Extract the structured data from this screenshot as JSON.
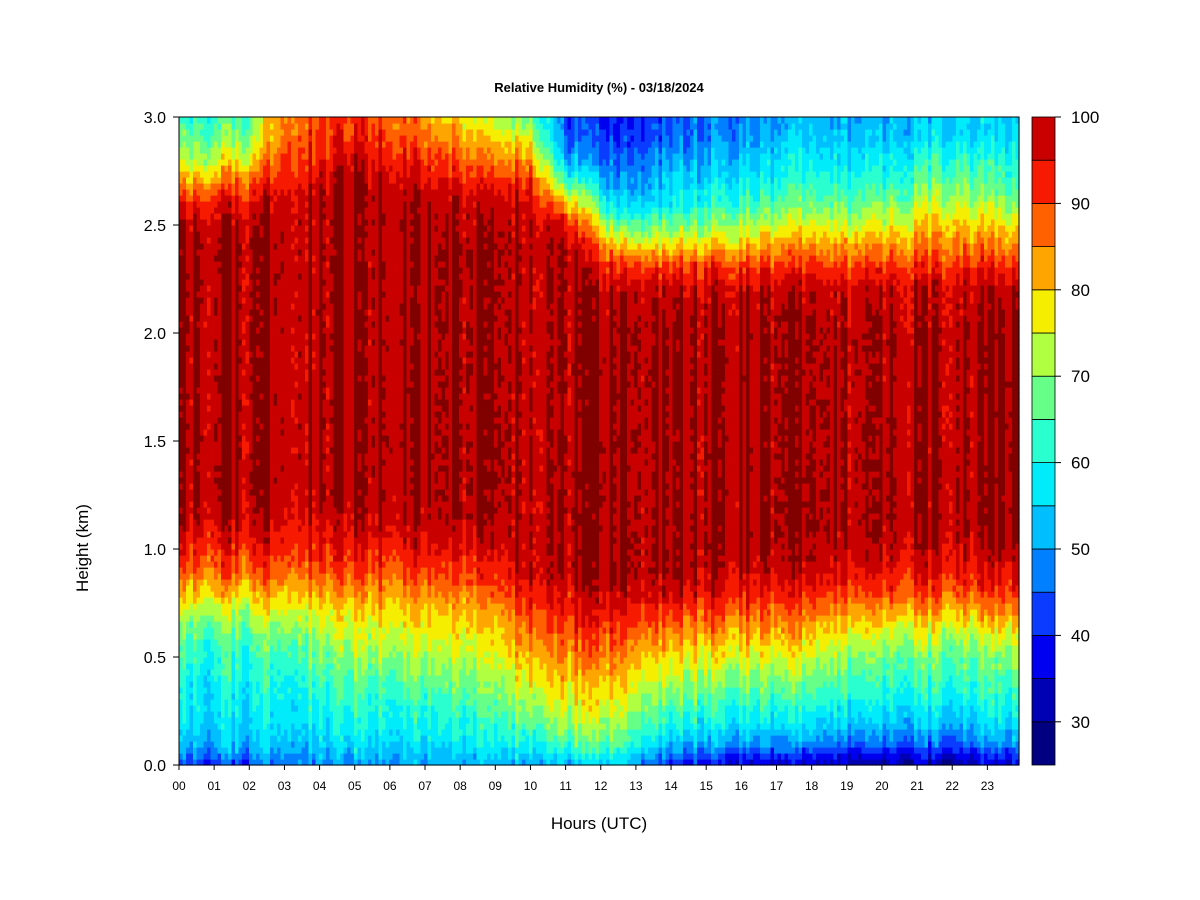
{
  "chart_data": {
    "type": "heatmap",
    "title": "Relative Humidity (%) - 03/18/2024",
    "xlabel": "Hours (UTC)",
    "ylabel": "Height (km)",
    "x_ticks": [
      "00",
      "01",
      "02",
      "03",
      "04",
      "05",
      "06",
      "07",
      "08",
      "09",
      "10",
      "11",
      "12",
      "13",
      "14",
      "15",
      "16",
      "17",
      "18",
      "19",
      "20",
      "21",
      "22",
      "23"
    ],
    "xlim": [
      0,
      23.9
    ],
    "ylim": [
      0,
      3.0
    ],
    "y_ticks": [
      "0.0",
      "0.5",
      "1.0",
      "1.5",
      "2.0",
      "2.5",
      "3.0"
    ],
    "y_tick_values": [
      0,
      0.5,
      1.0,
      1.5,
      2.0,
      2.5,
      3.0
    ],
    "colorbar": {
      "levels": [
        25,
        30,
        35,
        40,
        45,
        50,
        55,
        60,
        65,
        70,
        75,
        80,
        85,
        90,
        95,
        100
      ],
      "labels": [
        "30",
        "40",
        "50",
        "60",
        "70",
        "80",
        "90",
        "100"
      ],
      "label_values": [
        30,
        40,
        50,
        60,
        70,
        80,
        90,
        100
      ],
      "colors": [
        "#000080",
        "#0000b4",
        "#0000f0",
        "#0a3cff",
        "#0080ff",
        "#00bfff",
        "#00ecfa",
        "#2affd0",
        "#66ff88",
        "#b0ff40",
        "#f5ee00",
        "#ffa500",
        "#ff6000",
        "#f51a00",
        "#c80000",
        "#800000"
      ]
    },
    "profile_heights_km": [
      0.0,
      0.05,
      0.1,
      0.2,
      0.3,
      0.4,
      0.5,
      0.6,
      0.7,
      0.8,
      0.9,
      1.0,
      1.1,
      1.2,
      1.3,
      1.5,
      2.0,
      2.2,
      2.3,
      2.4,
      2.5,
      2.6,
      2.7,
      2.8,
      2.9,
      3.0
    ],
    "profiles": [
      {
        "hour": 0,
        "rh": [
          42,
          47,
          52,
          56,
          58,
          60,
          62,
          66,
          72,
          80,
          88,
          93,
          97,
          99,
          100,
          100,
          100,
          100,
          100,
          100,
          99,
          93,
          82,
          72,
          66,
          62
        ]
      },
      {
        "hour": 2,
        "rh": [
          42,
          48,
          53,
          56,
          58,
          60,
          62,
          66,
          72,
          80,
          88,
          93,
          97,
          99,
          100,
          100,
          100,
          100,
          100,
          100,
          99,
          95,
          88,
          78,
          70,
          66
        ]
      },
      {
        "hour": 3,
        "rh": [
          48,
          52,
          55,
          58,
          60,
          63,
          66,
          70,
          76,
          83,
          90,
          94,
          97,
          99,
          100,
          100,
          100,
          100,
          100,
          100,
          100,
          100,
          96,
          92,
          90,
          88
        ]
      },
      {
        "hour": 5,
        "rh": [
          50,
          53,
          56,
          60,
          63,
          66,
          70,
          74,
          78,
          84,
          90,
          94,
          97,
          99,
          100,
          100,
          100,
          100,
          100,
          100,
          100,
          100,
          100,
          97,
          94,
          92
        ]
      },
      {
        "hour": 7,
        "rh": [
          50,
          53,
          56,
          60,
          63,
          68,
          72,
          76,
          80,
          85,
          90,
          95,
          98,
          99,
          100,
          100,
          100,
          100,
          100,
          100,
          100,
          99,
          96,
          92,
          88,
          84
        ]
      },
      {
        "hour": 9,
        "rh": [
          52,
          55,
          58,
          62,
          66,
          70,
          74,
          78,
          82,
          87,
          92,
          96,
          98,
          100,
          100,
          100,
          100,
          100,
          100,
          100,
          99,
          97,
          92,
          85,
          78,
          72
        ]
      },
      {
        "hour": 10,
        "rh": [
          54,
          57,
          62,
          68,
          74,
          80,
          84,
          88,
          92,
          96,
          100,
          100,
          100,
          100,
          100,
          100,
          100,
          100,
          100,
          100,
          100,
          98,
          94,
          86,
          78,
          70
        ]
      },
      {
        "hour": 11,
        "rh": [
          54,
          58,
          64,
          72,
          76,
          80,
          84,
          88,
          92,
          96,
          100,
          100,
          100,
          100,
          100,
          100,
          100,
          100,
          100,
          100,
          96,
          82,
          66,
          52,
          46,
          44
        ]
      },
      {
        "hour": 12.5,
        "rh": [
          54,
          60,
          66,
          72,
          76,
          80,
          85,
          90,
          95,
          98,
          100,
          100,
          100,
          100,
          100,
          100,
          100,
          98,
          92,
          80,
          66,
          54,
          48,
          44,
          40,
          38
        ]
      },
      {
        "hour": 14,
        "rh": [
          40,
          46,
          52,
          60,
          66,
          72,
          78,
          84,
          90,
          96,
          100,
          100,
          100,
          100,
          100,
          100,
          100,
          98,
          92,
          80,
          68,
          58,
          54,
          50,
          46,
          44
        ]
      },
      {
        "hour": 16,
        "rh": [
          36,
          42,
          50,
          58,
          64,
          70,
          76,
          82,
          88,
          94,
          98,
          100,
          100,
          100,
          100,
          100,
          100,
          98,
          92,
          82,
          72,
          64,
          58,
          54,
          50,
          48
        ]
      },
      {
        "hour": 18,
        "rh": [
          34,
          40,
          48,
          56,
          62,
          68,
          74,
          80,
          86,
          92,
          97,
          99,
          100,
          100,
          100,
          100,
          100,
          98,
          92,
          84,
          76,
          68,
          62,
          58,
          54,
          52
        ]
      },
      {
        "hour": 20,
        "rh": [
          32,
          38,
          46,
          54,
          60,
          64,
          68,
          74,
          82,
          90,
          95,
          98,
          100,
          100,
          100,
          100,
          100,
          98,
          92,
          84,
          76,
          68,
          62,
          58,
          54,
          52
        ]
      },
      {
        "hour": 22,
        "rh": [
          32,
          38,
          46,
          54,
          60,
          64,
          68,
          74,
          82,
          90,
          95,
          98,
          100,
          100,
          100,
          100,
          100,
          98,
          94,
          88,
          82,
          76,
          70,
          64,
          58,
          56
        ]
      },
      {
        "hour": 23.9,
        "rh": [
          34,
          40,
          48,
          56,
          60,
          64,
          68,
          74,
          82,
          90,
          95,
          98,
          100,
          100,
          100,
          100,
          100,
          98,
          92,
          84,
          76,
          68,
          62,
          58,
          54,
          52
        ]
      }
    ]
  }
}
